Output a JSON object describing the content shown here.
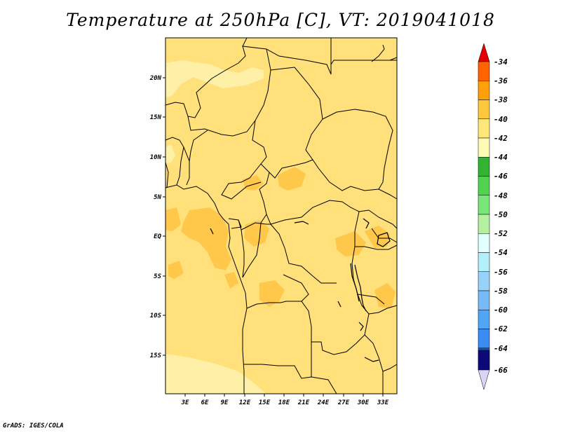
{
  "title": "Temperature at 250hPa [C], VT: 2019041018",
  "footer": "GrADS: IGES/COLA",
  "map": {
    "lat_labels": [
      "20N",
      "15N",
      "10N",
      "5N",
      "EQ",
      "5S",
      "10S",
      "15S"
    ],
    "lon_labels": [
      "3E",
      "6E",
      "9E",
      "12E",
      "15E",
      "18E",
      "21E",
      "24E",
      "27E",
      "30E",
      "33E"
    ]
  },
  "colorbar": {
    "labels": [
      "-34",
      "-36",
      "-38",
      "-40",
      "-42",
      "-44",
      "-46",
      "-48",
      "-50",
      "-52",
      "-54",
      "-56",
      "-58",
      "-60",
      "-62",
      "-64",
      "-66"
    ],
    "colors": [
      "#ffffff",
      "#dcd3f8",
      "#0c0a78",
      "#1450b4",
      "#1e6edc",
      "#3a8cf0",
      "#50a5f5",
      "#78b9f8",
      "#96d2fa",
      "#b4f0fa",
      "#e1ffff",
      "#b4f0a0",
      "#78e678",
      "#50d250",
      "#32b432",
      "#fffab4",
      "#ffe678",
      "#ffc83c",
      "#ffa00a",
      "#ff6400",
      "#e60000",
      "#ffe4ff"
    ]
  }
}
